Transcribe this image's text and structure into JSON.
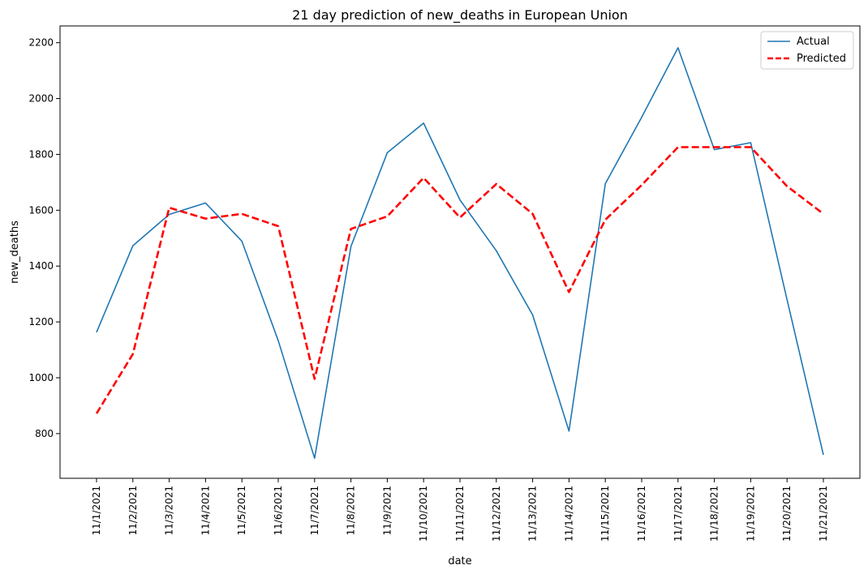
{
  "chart_data": {
    "type": "line",
    "title": "21 day prediction of new_deaths in European Union",
    "xlabel": "date",
    "ylabel": "new_deaths",
    "ylim": [
      640,
      2260
    ],
    "y_ticks": [
      800,
      1000,
      1200,
      1400,
      1600,
      1800,
      2000,
      2200
    ],
    "grid": false,
    "legend_position": "top-right",
    "categories": [
      "11/1/2021",
      "11/2/2021",
      "11/3/2021",
      "11/4/2021",
      "11/5/2021",
      "11/6/2021",
      "11/7/2021",
      "11/8/2021",
      "11/9/2021",
      "11/10/2021",
      "11/11/2021",
      "11/12/2021",
      "11/13/2021",
      "11/14/2021",
      "11/15/2021",
      "11/16/2021",
      "11/17/2021",
      "11/18/2021",
      "11/19/2021",
      "11/20/2021",
      "11/21/2021"
    ],
    "series": [
      {
        "name": "Actual",
        "color": "#1f77b4",
        "style": "solid",
        "values": [
          1163,
          1473,
          1585,
          1626,
          1489,
          1133,
          712,
          1470,
          1806,
          1912,
          1637,
          1455,
          1225,
          809,
          1695,
          1933,
          2182,
          1817,
          1842,
          1280,
          724
        ]
      },
      {
        "name": "Predicted",
        "color": "#ff0000",
        "style": "dashed",
        "values": [
          872,
          1085,
          1609,
          1570,
          1587,
          1543,
          996,
          1533,
          1578,
          1716,
          1574,
          1694,
          1587,
          1307,
          1566,
          1690,
          1826,
          1826,
          1826,
          1686,
          1587
        ]
      }
    ]
  }
}
